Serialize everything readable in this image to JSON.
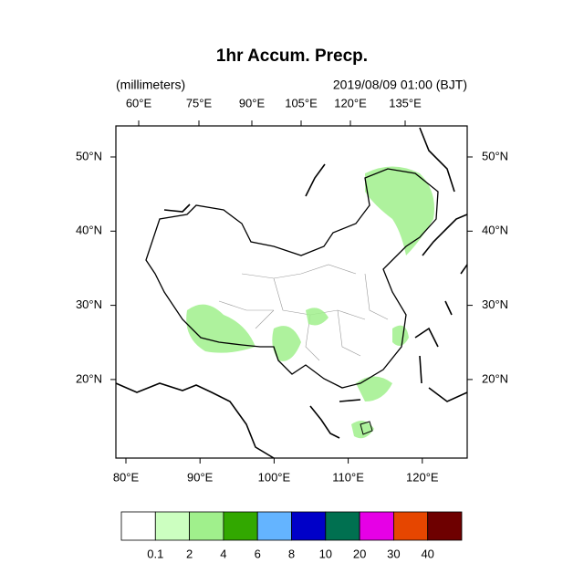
{
  "map": {
    "title": "1hr Accum. Precp.",
    "subtitle_left": "(millimeters)",
    "subtitle_right": "2019/08/09 01:00 (BJT)",
    "top_ticks": [
      "60°E",
      "75°E",
      "90°E",
      "105°E",
      "120°E",
      "135°E"
    ],
    "bottom_ticks": [
      "80°E",
      "90°E",
      "100°E",
      "110°E",
      "120°E"
    ],
    "left_ticks": [
      "50°N",
      "40°N",
      "30°N",
      "20°N"
    ],
    "right_ticks": [
      "50°N",
      "40°N",
      "30°N",
      "20°N"
    ],
    "colorbar": {
      "colors": [
        "#ffffff",
        "#ccffc0",
        "#a0f08c",
        "#32a800",
        "#64b4ff",
        "#0000c8",
        "#007050",
        "#e600e6",
        "#e64600",
        "#6e0000"
      ],
      "levels": [
        0.1,
        2,
        4,
        6,
        8,
        10,
        20,
        30,
        40
      ]
    }
  }
}
